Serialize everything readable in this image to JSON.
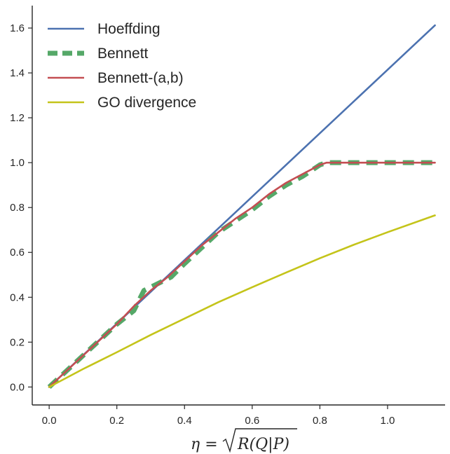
{
  "chart_data": {
    "type": "line",
    "title": "",
    "xlabel": "η = √R(Q|P)",
    "xlabel_parts": {
      "lhs": "η",
      "eq": "=",
      "rhs": "R(Q|P)"
    },
    "ylabel": "",
    "xlim": [
      -0.05,
      1.17
    ],
    "ylim": [
      -0.08,
      1.7
    ],
    "xticks": [
      0.0,
      0.2,
      0.4,
      0.6,
      0.8,
      1.0
    ],
    "xtick_labels": [
      "0.0",
      "0.2",
      "0.4",
      "0.6",
      "0.8",
      "1.0"
    ],
    "yticks": [
      0.0,
      0.2,
      0.4,
      0.6,
      0.8,
      1.0,
      1.2,
      1.4,
      1.6
    ],
    "ytick_labels": [
      "0.0",
      "0.2",
      "0.4",
      "0.6",
      "0.8",
      "1.0",
      "1.2",
      "1.4",
      "1.6"
    ],
    "grid": false,
    "legend_position": "top-left",
    "series": [
      {
        "name": "Hoeffding",
        "color": "#4c72b0",
        "style": "solid",
        "x": [
          0.0,
          1.14
        ],
        "y": [
          0.0,
          1.612
        ]
      },
      {
        "name": "Bennett",
        "color": "#55a868",
        "style": "dashed",
        "x": [
          0.0,
          0.05,
          0.1,
          0.15,
          0.2,
          0.25,
          0.28,
          0.32,
          0.36,
          0.4,
          0.45,
          0.5,
          0.55,
          0.6,
          0.65,
          0.7,
          0.75,
          0.8,
          0.82,
          0.85,
          0.9,
          1.0,
          1.14
        ],
        "y": [
          0.0,
          0.07,
          0.14,
          0.21,
          0.28,
          0.34,
          0.43,
          0.46,
          0.49,
          0.55,
          0.62,
          0.69,
          0.74,
          0.79,
          0.85,
          0.9,
          0.94,
          0.99,
          1.0,
          1.0,
          1.0,
          1.0,
          1.0
        ]
      },
      {
        "name": "Bennett-(a,b)",
        "color": "#c44e52",
        "style": "solid",
        "x": [
          0.0,
          0.05,
          0.1,
          0.15,
          0.2,
          0.25,
          0.3,
          0.35,
          0.4,
          0.45,
          0.5,
          0.55,
          0.6,
          0.65,
          0.7,
          0.75,
          0.8,
          0.82,
          0.85,
          0.9,
          1.0,
          1.14
        ],
        "y": [
          0.0,
          0.07,
          0.14,
          0.21,
          0.28,
          0.36,
          0.43,
          0.49,
          0.56,
          0.63,
          0.69,
          0.75,
          0.8,
          0.86,
          0.91,
          0.95,
          0.99,
          1.0,
          1.0,
          1.0,
          1.0,
          1.0
        ]
      },
      {
        "name": "GO divergence",
        "color": "#c4c41a",
        "style": "solid",
        "x": [
          0.0,
          0.1,
          0.2,
          0.3,
          0.4,
          0.5,
          0.6,
          0.7,
          0.8,
          0.9,
          1.0,
          1.14
        ],
        "y": [
          0.0,
          0.08,
          0.155,
          0.232,
          0.305,
          0.378,
          0.445,
          0.51,
          0.574,
          0.634,
          0.69,
          0.765
        ]
      }
    ]
  }
}
